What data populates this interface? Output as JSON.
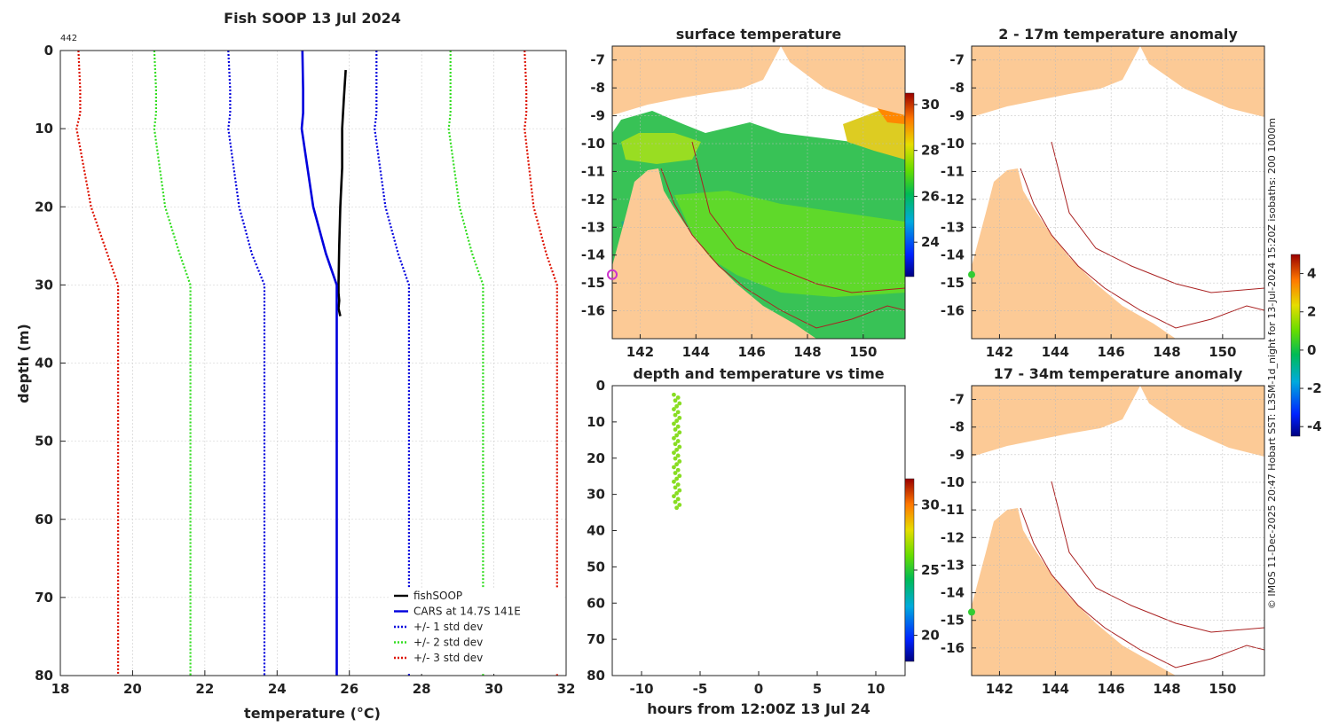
{
  "figure": {
    "credit": "© IMOS 11-Dec-2025 20:47 Hobart SST: L3SM-1d_night for 13-Jul-2024 15:20Z isobaths: 200  1000m"
  },
  "chart_data": [
    {
      "id": "profile",
      "type": "line",
      "title": "Fish SOOP 13 Jul 2024",
      "corner_label": "442",
      "xlabel": "temperature (°C)",
      "ylabel": "depth (m)",
      "xlim": [
        18,
        32
      ],
      "ylim": [
        0,
        80
      ],
      "y_reversed": true,
      "xticks": [
        18,
        20,
        22,
        24,
        26,
        28,
        30,
        32
      ],
      "yticks": [
        0,
        10,
        20,
        30,
        40,
        50,
        60,
        70,
        80
      ],
      "grid": true,
      "legend_position": "bottom-right",
      "series": [
        {
          "name": "fishSOOP",
          "color": "#000000",
          "style": "solid",
          "x": [
            25.9,
            25.85,
            25.8,
            25.8,
            25.75,
            25.72,
            25.7,
            25.7,
            25.72,
            25.7,
            25.75
          ],
          "y": [
            2.5,
            6,
            10,
            15,
            20,
            25,
            30,
            31,
            32,
            33,
            34
          ]
        },
        {
          "name": "CARS at 14.7S 141E",
          "color": "#0000dd",
          "style": "solid",
          "x": [
            24.7,
            24.72,
            24.72,
            24.68,
            25.0,
            25.35,
            25.65,
            25.65,
            25.65
          ],
          "y": [
            0,
            5,
            8,
            10,
            20,
            26,
            30,
            40,
            80
          ]
        },
        {
          "name": "+/- 1 std dev",
          "color": "#0000dd",
          "style": "dotted",
          "x": [
            22.65,
            22.7,
            22.7,
            22.65,
            22.95,
            23.3,
            23.65,
            23.65,
            23.65
          ],
          "y": [
            0,
            5,
            8,
            10,
            20,
            26,
            30,
            40,
            80
          ]
        },
        {
          "name": "",
          "color": "#0000dd",
          "style": "dotted",
          "x": [
            26.75,
            26.75,
            26.75,
            26.7,
            27.0,
            27.35,
            27.65,
            27.65,
            27.65
          ],
          "y": [
            0,
            5,
            8,
            10,
            20,
            26,
            30,
            40,
            80
          ]
        },
        {
          "name": "+/- 2 std dev",
          "color": "#33dd22",
          "style": "dotted",
          "x": [
            20.6,
            20.65,
            20.65,
            20.6,
            20.9,
            21.3,
            21.6,
            21.6,
            21.6
          ],
          "y": [
            0,
            5,
            8,
            10,
            20,
            26,
            30,
            40,
            80
          ]
        },
        {
          "name": "",
          "color": "#33dd22",
          "style": "dotted",
          "x": [
            28.8,
            28.8,
            28.8,
            28.75,
            29.05,
            29.4,
            29.7,
            29.7,
            29.7
          ],
          "y": [
            0,
            5,
            8,
            10,
            20,
            26,
            30,
            40,
            80
          ]
        },
        {
          "name": "+/- 3 std dev",
          "color": "#dd1100",
          "style": "dotted",
          "x": [
            18.5,
            18.55,
            18.55,
            18.45,
            18.85,
            19.3,
            19.6,
            19.6,
            19.6
          ],
          "y": [
            0,
            5,
            8,
            10,
            20,
            26,
            30,
            40,
            80
          ]
        },
        {
          "name": "",
          "color": "#dd1100",
          "style": "dotted",
          "x": [
            30.85,
            30.9,
            30.9,
            30.85,
            31.1,
            31.45,
            31.75,
            31.75,
            31.75
          ],
          "y": [
            0,
            5,
            8,
            10,
            20,
            26,
            30,
            40,
            80
          ]
        }
      ]
    },
    {
      "id": "sst_map",
      "type": "heatmap",
      "title": "surface temperature",
      "xlim": [
        141,
        151.5
      ],
      "ylim": [
        -17,
        -6.5
      ],
      "xticks": [
        142,
        144,
        146,
        148,
        150
      ],
      "yticks": [
        -7,
        -8,
        -9,
        -10,
        -11,
        -12,
        -13,
        -14,
        -15,
        -16
      ],
      "grid": true,
      "colorbar": {
        "ticks": [
          24,
          26,
          28,
          30
        ],
        "range": [
          22.5,
          30.5
        ]
      },
      "marker": {
        "lon": 141.0,
        "lat": -14.7,
        "color": "#cc33cc"
      }
    },
    {
      "id": "depth_time",
      "type": "scatter",
      "title": "depth and temperature vs time",
      "xlabel": "hours from 12:00Z 13 Jul 24",
      "xlim": [
        -12.5,
        12.5
      ],
      "ylim": [
        0,
        80
      ],
      "y_reversed": true,
      "xticks": [
        -10,
        -5,
        0,
        5,
        10
      ],
      "yticks": [
        0,
        10,
        20,
        30,
        40,
        50,
        60,
        70,
        80
      ],
      "colorbar": {
        "ticks": [
          20,
          25,
          30
        ],
        "range": [
          18,
          32
        ]
      },
      "series": [
        {
          "name": "fishSOOP",
          "color": "#88dd22",
          "x_hours": -7.0,
          "depth_min": 2.5,
          "depth_max": 34
        }
      ]
    },
    {
      "id": "anomaly_shallow",
      "type": "heatmap",
      "title": "2 - 17m temperature anomaly",
      "xlim": [
        141,
        151.5
      ],
      "ylim": [
        -17,
        -6.5
      ],
      "xticks": [
        142,
        144,
        146,
        148,
        150
      ],
      "yticks": [
        -7,
        -8,
        -9,
        -10,
        -11,
        -12,
        -13,
        -14,
        -15,
        -16
      ],
      "grid": true,
      "marker": {
        "lon": 141.0,
        "lat": -14.7,
        "color": "#33cc33"
      }
    },
    {
      "id": "anomaly_deep",
      "type": "heatmap",
      "title": "17 - 34m temperature anomaly",
      "xlim": [
        141,
        151.5
      ],
      "ylim": [
        -17,
        -6.5
      ],
      "xticks": [
        142,
        144,
        146,
        148,
        150
      ],
      "yticks": [
        -7,
        -8,
        -9,
        -10,
        -11,
        -12,
        -13,
        -14,
        -15,
        -16
      ],
      "grid": true,
      "marker": {
        "lon": 141.0,
        "lat": -14.7,
        "color": "#33cc33"
      },
      "colorbar": {
        "ticks": [
          4,
          2,
          0,
          -2,
          -4
        ],
        "range": [
          -4.5,
          5
        ]
      }
    }
  ]
}
